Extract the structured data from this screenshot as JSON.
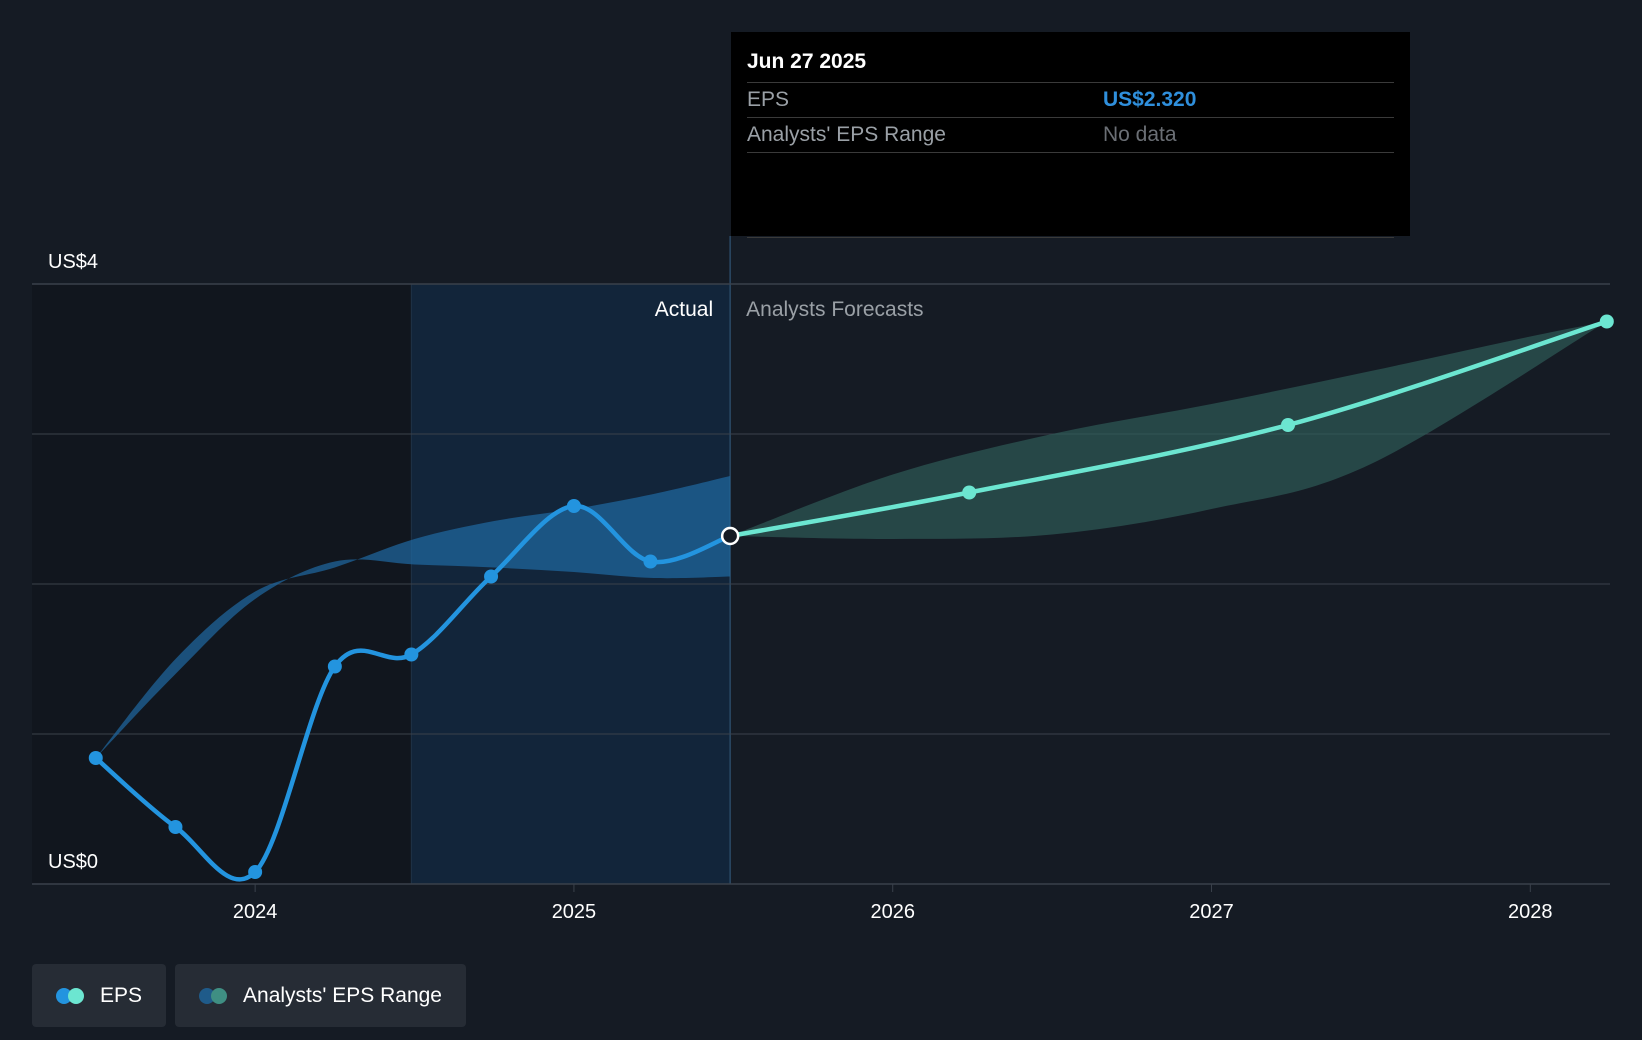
{
  "tooltip": {
    "date": "Jun 27 2025",
    "rows": [
      {
        "label": "EPS",
        "value": "US$2.320"
      },
      {
        "label": "Analysts' EPS Range",
        "value": "No data"
      }
    ]
  },
  "labels": {
    "actual": "Actual",
    "forecast": "Analysts Forecasts"
  },
  "legend": [
    {
      "label": "EPS",
      "colors": [
        "#2394df",
        "#6ce6d1"
      ]
    },
    {
      "label": "Analysts' EPS Range",
      "colors": [
        "#1f5b8a",
        "#3f8f83"
      ]
    }
  ],
  "colors": {
    "actual_line": "#2394df",
    "forecast_line": "#6ce6d1",
    "actual_range": "#1f6aa3",
    "forecast_range": "#2f5f5b",
    "grid": "#3a414b",
    "background": "#151b24"
  },
  "chart_data": {
    "type": "line",
    "x_unit": "year",
    "ylim": [
      0,
      4
    ],
    "y_ticks": [
      {
        "v": 4,
        "label": "US$4"
      },
      {
        "v": 0,
        "label": "US$0"
      }
    ],
    "x_ticks": [
      {
        "v": 2024,
        "label": "2024"
      },
      {
        "v": 2025,
        "label": "2025"
      },
      {
        "v": 2026,
        "label": "2026"
      },
      {
        "v": 2027,
        "label": "2027"
      },
      {
        "v": 2028,
        "label": "2028"
      }
    ],
    "grid": true,
    "x_domain": [
      2023.3,
      2028.25
    ],
    "past_shade_start": 2024.49,
    "divider_x": 2025.49,
    "series": [
      {
        "name": "EPS",
        "kind": "actual",
        "points": [
          [
            2023.5,
            0.84
          ],
          [
            2023.75,
            0.38
          ],
          [
            2024.0,
            0.08
          ],
          [
            2024.25,
            1.45
          ],
          [
            2024.49,
            1.53
          ],
          [
            2024.74,
            2.05
          ],
          [
            2025.0,
            2.52
          ],
          [
            2025.24,
            2.15
          ],
          [
            2025.49,
            2.32
          ]
        ]
      },
      {
        "name": "EPS",
        "kind": "forecast",
        "points": [
          [
            2025.49,
            2.32
          ],
          [
            2026.24,
            2.61
          ],
          [
            2027.24,
            3.06
          ],
          [
            2028.24,
            3.75
          ]
        ]
      }
    ],
    "range_bands": [
      {
        "kind": "actual",
        "upper": [
          [
            2023.5,
            0.84
          ],
          [
            2023.75,
            1.5
          ],
          [
            2024.0,
            1.95
          ],
          [
            2024.25,
            2.11
          ],
          [
            2024.5,
            2.3
          ],
          [
            2024.75,
            2.42
          ],
          [
            2025.0,
            2.5
          ],
          [
            2025.25,
            2.6
          ],
          [
            2025.49,
            2.72
          ]
        ],
        "lower": [
          [
            2025.49,
            2.05
          ],
          [
            2025.25,
            2.04
          ],
          [
            2025.0,
            2.08
          ],
          [
            2024.75,
            2.11
          ],
          [
            2024.5,
            2.13
          ],
          [
            2024.25,
            2.15
          ],
          [
            2024.0,
            1.9
          ],
          [
            2023.75,
            1.4
          ],
          [
            2023.5,
            0.84
          ]
        ]
      },
      {
        "kind": "forecast",
        "upper": [
          [
            2025.49,
            2.32
          ],
          [
            2026.0,
            2.73
          ],
          [
            2026.5,
            3.0
          ],
          [
            2027.0,
            3.2
          ],
          [
            2027.5,
            3.42
          ],
          [
            2028.0,
            3.65
          ],
          [
            2028.24,
            3.75
          ]
        ],
        "lower": [
          [
            2028.24,
            3.75
          ],
          [
            2027.5,
            2.8
          ],
          [
            2027.0,
            2.5
          ],
          [
            2026.5,
            2.33
          ],
          [
            2026.0,
            2.3
          ],
          [
            2025.49,
            2.32
          ]
        ]
      }
    ],
    "highlight": {
      "x": 2025.49,
      "y": 2.32
    }
  }
}
